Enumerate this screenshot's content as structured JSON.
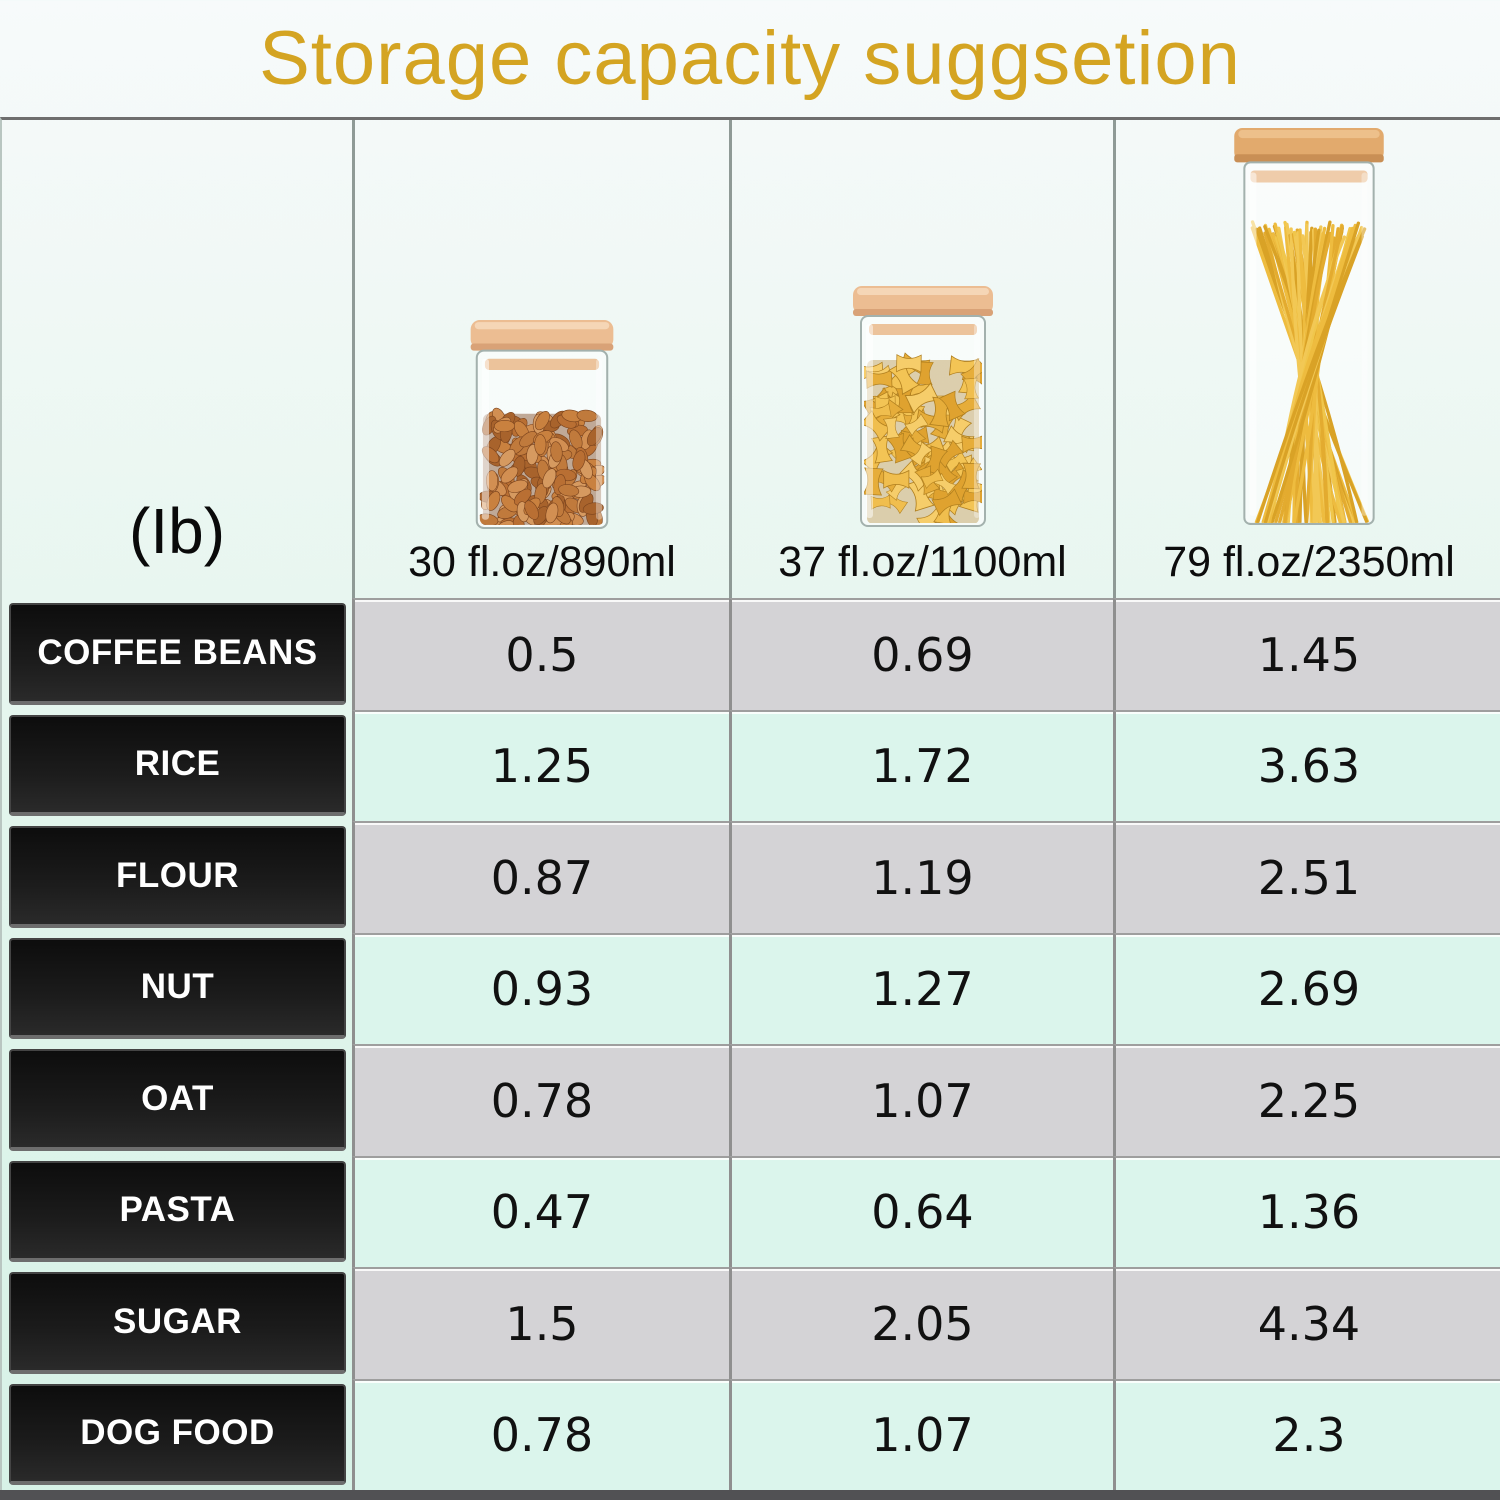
{
  "title": "Storage capacity suggsetion",
  "unit_label": "(Ib)",
  "columns": [
    {
      "label": "30 fl.oz/890ml",
      "icon": "almond-jar-icon"
    },
    {
      "label": "37 fl.oz/1100ml",
      "icon": "farfalle-jar-icon"
    },
    {
      "label": "79 fl.oz/2350ml",
      "icon": "spaghetti-jar-icon"
    }
  ],
  "rows": [
    {
      "label": "COFFEE BEANS",
      "values": [
        "0.5",
        "0.69",
        "1.45"
      ]
    },
    {
      "label": "RICE",
      "values": [
        "1.25",
        "1.72",
        "3.63"
      ]
    },
    {
      "label": "FLOUR",
      "values": [
        "0.87",
        "1.19",
        "2.51"
      ]
    },
    {
      "label": "NUT",
      "values": [
        "0.93",
        "1.27",
        "2.69"
      ]
    },
    {
      "label": "OAT",
      "values": [
        "0.78",
        "1.07",
        "2.25"
      ]
    },
    {
      "label": "PASTA",
      "values": [
        "0.47",
        "0.64",
        "1.36"
      ]
    },
    {
      "label": "SUGAR",
      "values": [
        "1.5",
        "2.05",
        "4.34"
      ]
    },
    {
      "label": "DOG FOOD",
      "values": [
        "0.78",
        "1.07",
        "2.3"
      ]
    }
  ],
  "colors": {
    "title_gold": "#d4a422",
    "mint_cell": "#dbf5ec",
    "gray_cell": "#d4d3d6",
    "label_bg": "#161616",
    "label_text": "#ffffff",
    "lid_tan": "#ecbd92",
    "almond_brown": "#c9813f",
    "pasta_yellow": "#f0be4e"
  },
  "chart_data": {
    "type": "table",
    "title": "Storage capacity suggsetion",
    "unit": "lb",
    "columns": [
      "(Ib)",
      "30 fl.oz/890ml",
      "37 fl.oz/1100ml",
      "79 fl.oz/2350ml"
    ],
    "rows": [
      {
        "item": "COFFEE BEANS",
        "values": [
          0.5,
          0.69,
          1.45
        ]
      },
      {
        "item": "RICE",
        "values": [
          1.25,
          1.72,
          3.63
        ]
      },
      {
        "item": "FLOUR",
        "values": [
          0.87,
          1.19,
          2.51
        ]
      },
      {
        "item": "NUT",
        "values": [
          0.93,
          1.27,
          2.69
        ]
      },
      {
        "item": "OAT",
        "values": [
          0.78,
          1.07,
          2.25
        ]
      },
      {
        "item": "PASTA",
        "values": [
          0.47,
          0.64,
          1.36
        ]
      },
      {
        "item": "SUGAR",
        "values": [
          1.5,
          2.05,
          4.34
        ]
      },
      {
        "item": "DOG FOOD",
        "values": [
          0.78,
          1.07,
          2.3
        ]
      }
    ]
  }
}
